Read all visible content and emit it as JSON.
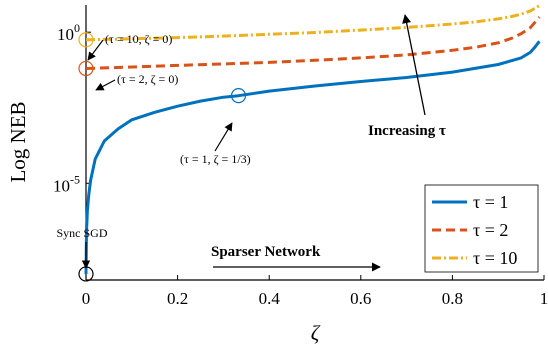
{
  "chart_data": {
    "type": "line",
    "xlabel": "ζ",
    "ylabel": "Log NEB",
    "xlim": [
      0,
      1
    ],
    "ylim_log10": [
      -8.2,
      0.9
    ],
    "yscale": "log",
    "x_ticks": [
      0,
      0.2,
      0.4,
      0.6,
      0.8,
      1
    ],
    "x_tick_labels": [
      "0",
      "0.2",
      "0.4",
      "0.6",
      "0.8",
      "1"
    ],
    "y_ticks_log10": [
      0,
      -5
    ],
    "y_tick_labels": [
      {
        "base": "10",
        "exp": "0"
      },
      {
        "base": "10",
        "exp": "-5"
      }
    ],
    "grid": false,
    "legend_position": "bottom-right",
    "series": [
      {
        "name": "τ = 1",
        "color": "#0072bd",
        "dash": "solid",
        "x": [
          0,
          0.001,
          0.003,
          0.006,
          0.01,
          0.02,
          0.04,
          0.07,
          0.1,
          0.15,
          0.2,
          0.25,
          0.3,
          0.333,
          0.4,
          0.5,
          0.6,
          0.7,
          0.8,
          0.9,
          0.95,
          0.97,
          0.98,
          0.99
        ],
        "log10_y": [
          -8.0,
          -6.6,
          -5.9,
          -5.4,
          -4.9,
          -4.2,
          -3.6,
          -3.2,
          -2.9,
          -2.65,
          -2.45,
          -2.28,
          -2.15,
          -2.1,
          -1.95,
          -1.78,
          -1.63,
          -1.5,
          -1.32,
          -1.07,
          -0.85,
          -0.67,
          -0.5,
          -0.3
        ]
      },
      {
        "name": "τ = 2",
        "color": "#d95319",
        "dash": "dashed",
        "x": [
          0,
          0.1,
          0.2,
          0.3,
          0.4,
          0.5,
          0.6,
          0.7,
          0.8,
          0.85,
          0.9,
          0.93,
          0.95,
          0.97,
          0.99
        ],
        "log10_y": [
          -1.2,
          -1.15,
          -1.1,
          -1.05,
          -1.0,
          -0.93,
          -0.85,
          -0.75,
          -0.6,
          -0.5,
          -0.35,
          -0.2,
          -0.05,
          0.15,
          0.5
        ]
      },
      {
        "name": "τ = 10",
        "color": "#edb120",
        "dash": "dashdot",
        "x": [
          0,
          0.1,
          0.2,
          0.3,
          0.4,
          0.5,
          0.6,
          0.7,
          0.8,
          0.85,
          0.9,
          0.93,
          0.95,
          0.97,
          0.99
        ],
        "log10_y": [
          -0.25,
          -0.22,
          -0.18,
          -0.13,
          -0.07,
          -0.01,
          0.07,
          0.16,
          0.27,
          0.34,
          0.44,
          0.52,
          0.6,
          0.7,
          0.88
        ]
      }
    ],
    "markers": [
      {
        "x": 0,
        "log10_y": -8.0,
        "color": "#000000"
      },
      {
        "x": 0.333,
        "log10_y": -2.1,
        "color": "#0072bd"
      },
      {
        "x": 0,
        "log10_y": -1.2,
        "color": "#d95319"
      },
      {
        "x": 0,
        "log10_y": -0.25,
        "color": "#edb120"
      }
    ],
    "annotations": [
      {
        "id": "ann-tau10",
        "text": "(τ = 10, ζ = 0)"
      },
      {
        "id": "ann-tau2",
        "text": "(τ = 2, ζ = 0)"
      },
      {
        "id": "ann-tau1",
        "text": "(τ = 1, ζ = 1/3)"
      },
      {
        "id": "ann-sync",
        "text": "Sync SGD"
      },
      {
        "id": "ann-sparser",
        "text": "Sparser Network"
      },
      {
        "id": "ann-increasing",
        "text": "Increasing τ"
      }
    ]
  }
}
